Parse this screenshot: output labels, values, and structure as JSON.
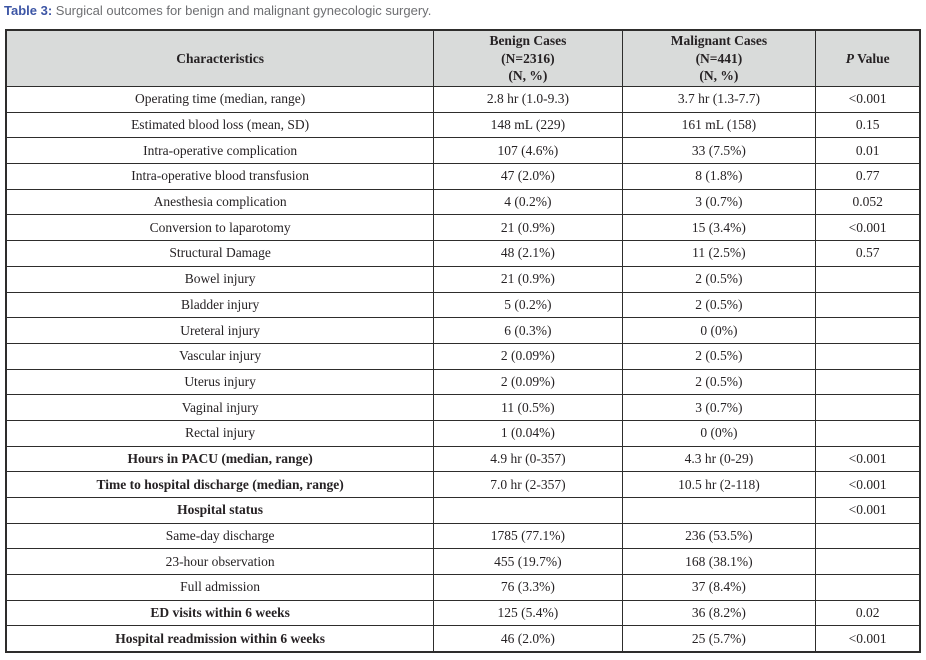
{
  "caption": {
    "label": "Table 3:",
    "text": " Surgical outcomes for benign and malignant gynecologic surgery."
  },
  "colors": {
    "caption_label_blue": "#3c55a5",
    "caption_text_gray": "#6e6f72",
    "header_background": "#d9dbda",
    "table_border": "#2e2d2c",
    "table_text": "#262224"
  },
  "table": {
    "header": {
      "characteristics": "Characteristics",
      "benign": {
        "line1": "Benign Cases",
        "line2": "(N=2316)",
        "line3": "(N, %)"
      },
      "malignant": {
        "line1": "Malignant Cases",
        "line2": "(N=441)",
        "line3": "(N, %)"
      },
      "p_italic": "P",
      "p_rest": " Value"
    },
    "rows": [
      {
        "label": "Operating time (median, range)",
        "benign": "2.8 hr (1.0-9.3)",
        "malignant": "3.7 hr (1.3-7.7)",
        "p": "<0.001",
        "bold": false
      },
      {
        "label": "Estimated blood loss (mean, SD)",
        "benign": "148 mL (229)",
        "malignant": "161 mL (158)",
        "p": "0.15",
        "bold": false
      },
      {
        "label": "Intra-operative complication",
        "benign": "107 (4.6%)",
        "malignant": "33 (7.5%)",
        "p": "0.01",
        "bold": false
      },
      {
        "label": "Intra-operative blood transfusion",
        "benign": "47 (2.0%)",
        "malignant": "8 (1.8%)",
        "p": "0.77",
        "bold": false
      },
      {
        "label": "Anesthesia complication",
        "benign": "4 (0.2%)",
        "malignant": "3 (0.7%)",
        "p": "0.052",
        "bold": false
      },
      {
        "label": "Conversion to laparotomy",
        "benign": "21 (0.9%)",
        "malignant": "15 (3.4%)",
        "p": "<0.001",
        "bold": false
      },
      {
        "label": "Structural Damage",
        "benign": "48 (2.1%)",
        "malignant": "11 (2.5%)",
        "p": "0.57",
        "bold": false
      },
      {
        "label": "Bowel injury",
        "benign": "21 (0.9%)",
        "malignant": "2 (0.5%)",
        "p": "",
        "bold": false
      },
      {
        "label": "Bladder injury",
        "benign": "5 (0.2%)",
        "malignant": "2 (0.5%)",
        "p": "",
        "bold": false
      },
      {
        "label": "Ureteral injury",
        "benign": "6 (0.3%)",
        "malignant": "0 (0%)",
        "p": "",
        "bold": false
      },
      {
        "label": "Vascular injury",
        "benign": "2 (0.09%)",
        "malignant": "2 (0.5%)",
        "p": "",
        "bold": false
      },
      {
        "label": "Uterus injury",
        "benign": "2 (0.09%)",
        "malignant": "2 (0.5%)",
        "p": "",
        "bold": false
      },
      {
        "label": "Vaginal injury",
        "benign": "11 (0.5%)",
        "malignant": "3 (0.7%)",
        "p": "",
        "bold": false
      },
      {
        "label": "Rectal injury",
        "benign": "1 (0.04%)",
        "malignant": "0 (0%)",
        "p": "",
        "bold": false
      },
      {
        "label": "Hours in PACU (median, range)",
        "benign": "4.9 hr (0-357)",
        "malignant": "4.3 hr (0-29)",
        "p": "<0.001",
        "bold": true
      },
      {
        "label": "Time to hospital discharge (median, range)",
        "benign": "7.0 hr (2-357)",
        "malignant": "10.5 hr (2-118)",
        "p": "<0.001",
        "bold": true
      },
      {
        "label": "Hospital status",
        "benign": "",
        "malignant": "",
        "p": "<0.001",
        "bold": true
      },
      {
        "label": "Same-day discharge",
        "benign": "1785 (77.1%)",
        "malignant": "236 (53.5%)",
        "p": "",
        "bold": false
      },
      {
        "label": "23-hour observation",
        "benign": "455 (19.7%)",
        "malignant": "168 (38.1%)",
        "p": "",
        "bold": false
      },
      {
        "label": "Full admission",
        "benign": "76 (3.3%)",
        "malignant": "37 (8.4%)",
        "p": "",
        "bold": false
      },
      {
        "label": "ED visits within 6 weeks",
        "benign": "125 (5.4%)",
        "malignant": "36 (8.2%)",
        "p": "0.02",
        "bold": true
      },
      {
        "label": "Hospital readmission within 6 weeks",
        "benign": "46 (2.0%)",
        "malignant": "25 (5.7%)",
        "p": "<0.001",
        "bold": true
      }
    ]
  }
}
